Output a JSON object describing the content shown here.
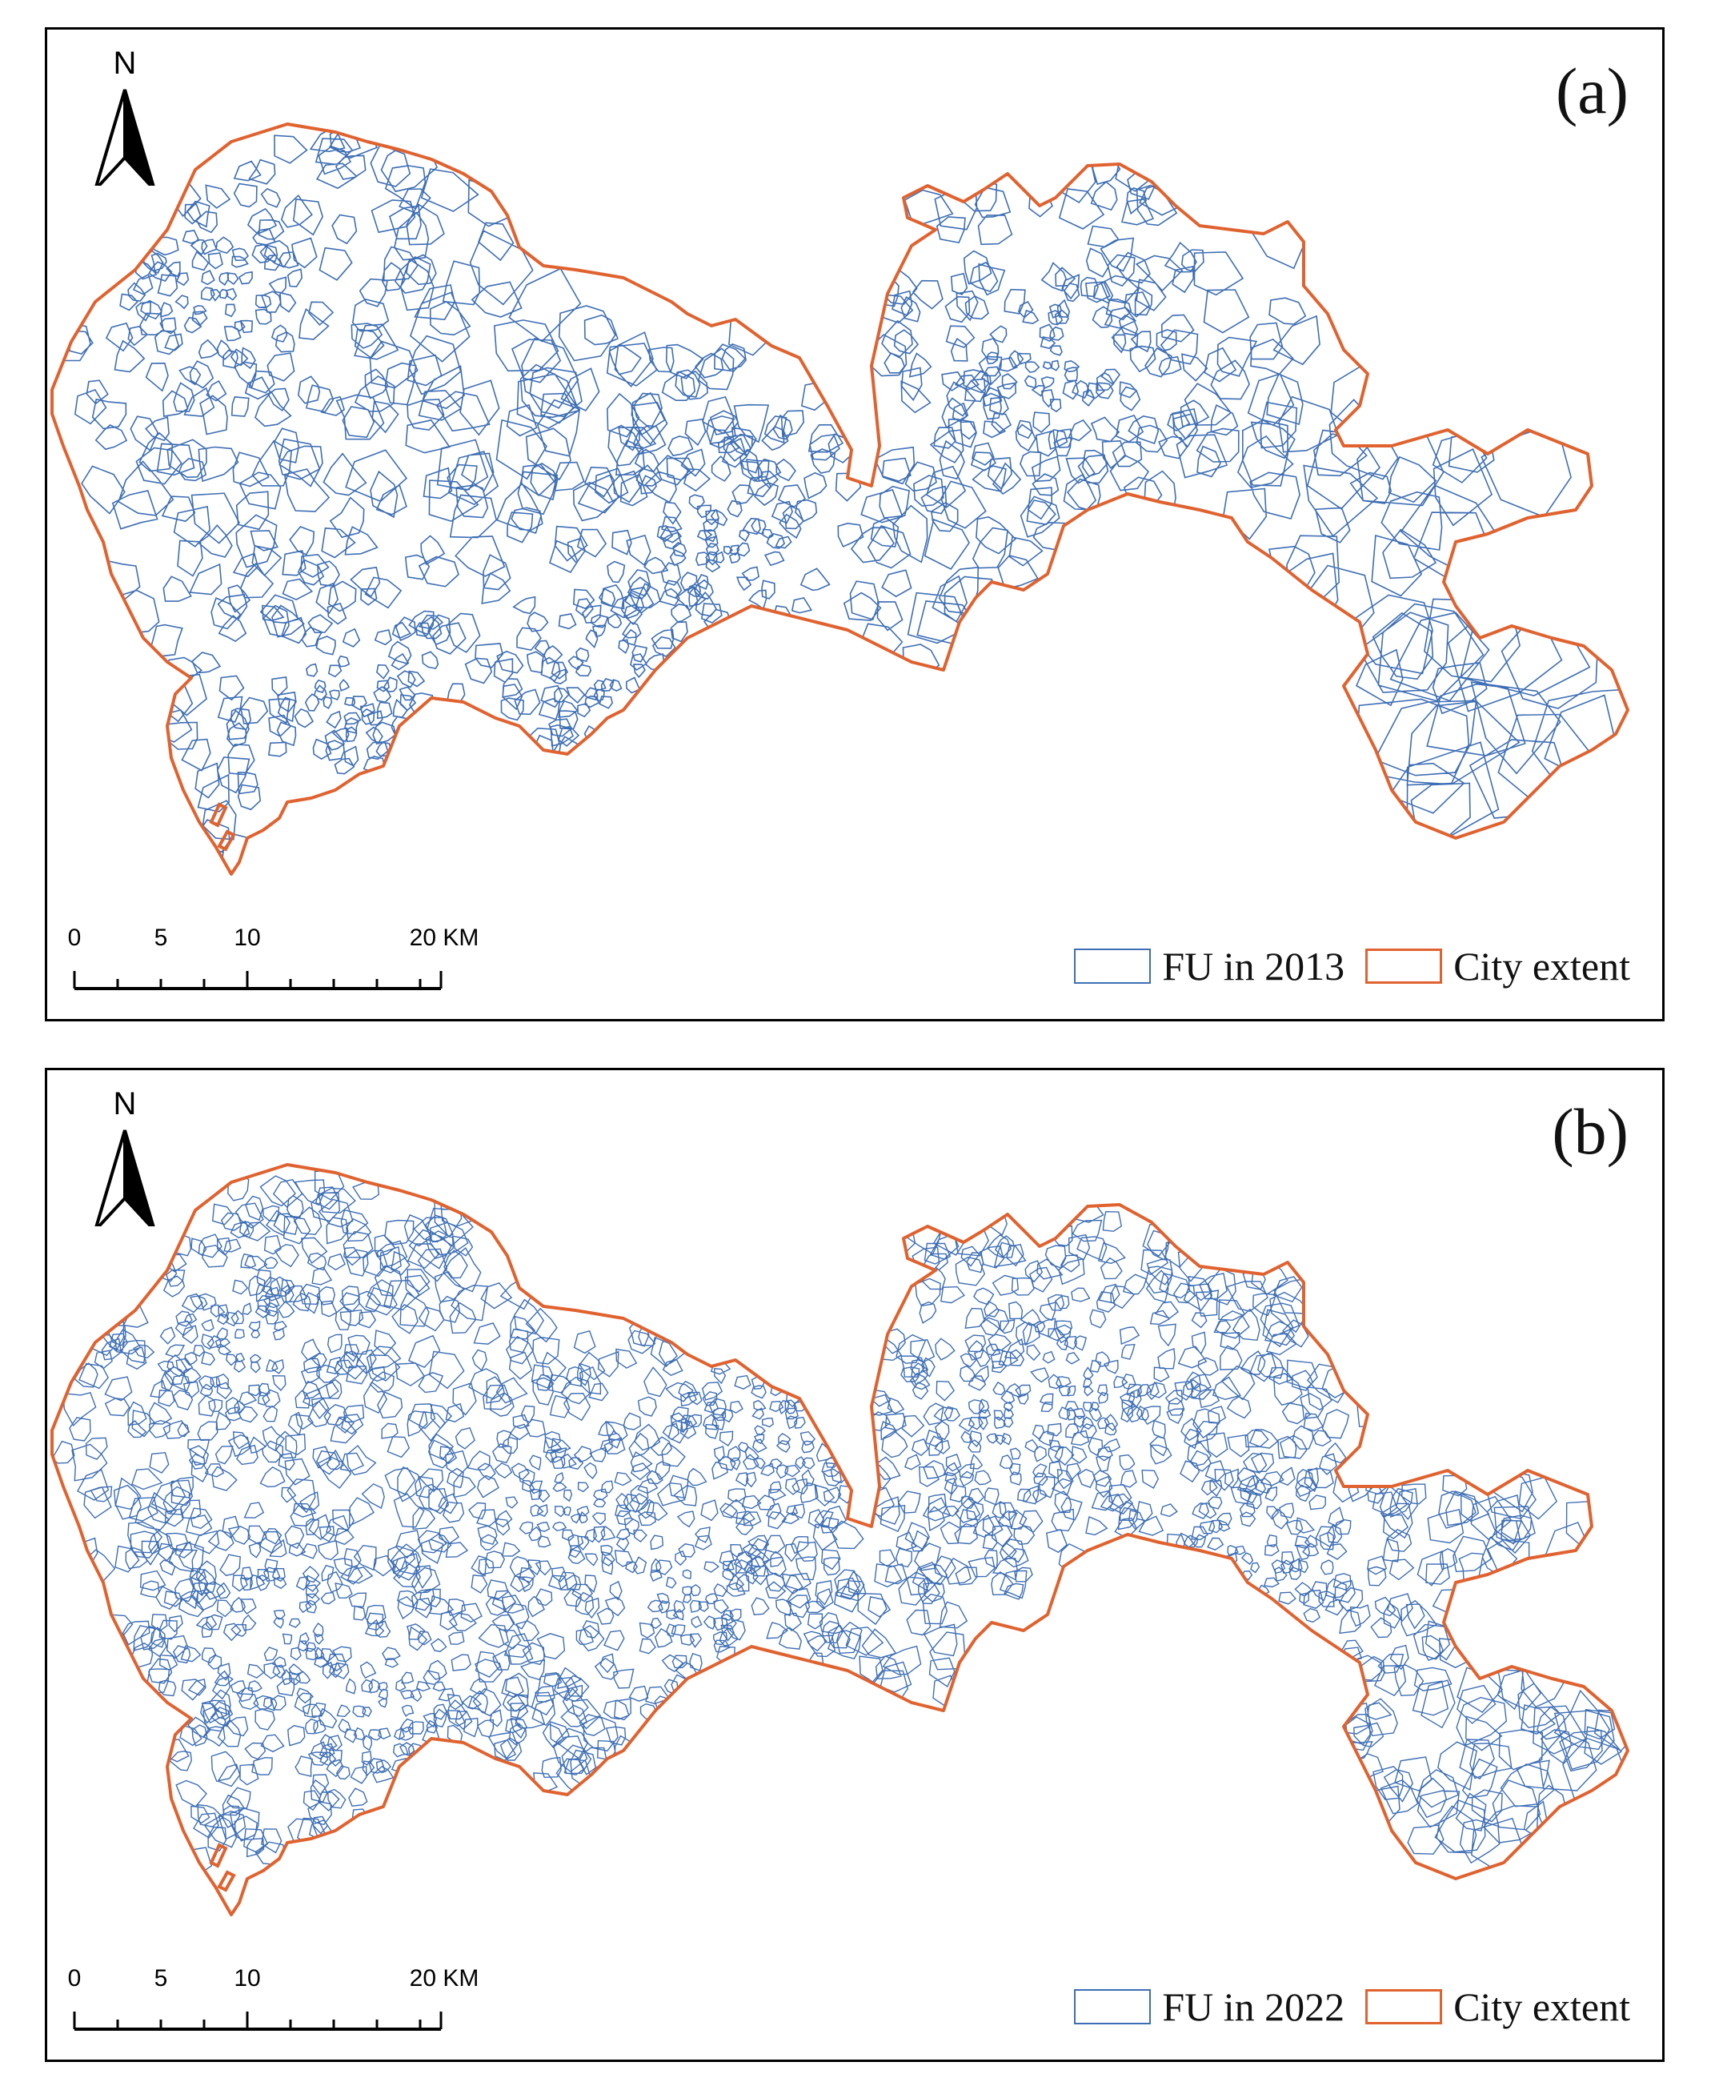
{
  "colors": {
    "fu_line": "#3d6eb4",
    "city_extent": "#e0622f",
    "frame": "#000000"
  },
  "north_arrow": {
    "label": "N",
    "icon": "north-arrow-icon"
  },
  "scale_bar": {
    "ticks": [
      "0",
      "5",
      "10",
      "20 KM"
    ],
    "tick_values_km": [
      0,
      5,
      10,
      20
    ]
  },
  "panels": [
    {
      "label": "(a)",
      "legend": {
        "fu_label": "FU in 2013",
        "city_label": "City extent"
      },
      "density": "lower"
    },
    {
      "label": "(b)",
      "legend": {
        "fu_label": "FU in 2022",
        "city_label": "City extent"
      },
      "density": "higher"
    }
  ]
}
